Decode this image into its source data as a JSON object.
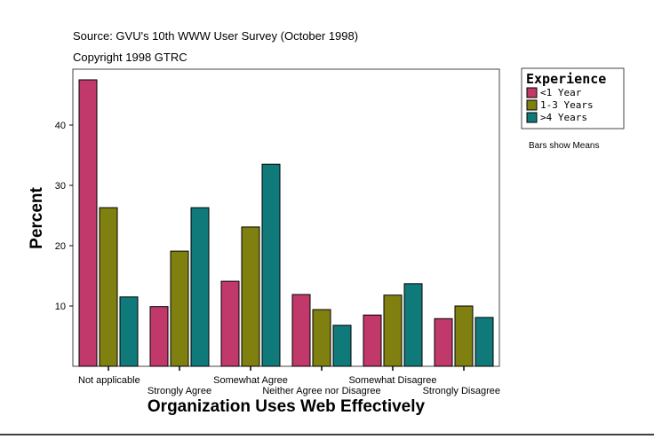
{
  "header": {
    "source": "Source: GVU's 10th WWW User Survey (October 1998)",
    "copyright": "Copyright 1998 GTRC"
  },
  "note": "Bars show Means",
  "chart_data": {
    "type": "bar",
    "xlabel": "Organization Uses Web Effectively",
    "ylabel": "Percent",
    "ylim": [
      0,
      50
    ],
    "yticks": [
      10,
      20,
      30,
      40
    ],
    "grid": false,
    "legend_title": "Experience",
    "legend_position": "right",
    "categories": [
      "Not applicable",
      "Strongly Agree",
      "Somewhat Agree",
      "Neither Agree nor Disagree",
      "Somewhat Disagree",
      "Strongly Disagree"
    ],
    "series": [
      {
        "name": "<1 Year",
        "color": "#C0396A",
        "values": [
          47.5,
          9.9,
          14.1,
          11.9,
          8.5,
          7.9
        ]
      },
      {
        "name": "1-3 Years",
        "color": "#808010",
        "values": [
          26.3,
          19.1,
          23.1,
          9.4,
          11.8,
          10.0
        ]
      },
      {
        "name": ">4 Years",
        "color": "#107A7A",
        "values": [
          11.5,
          26.3,
          33.5,
          6.8,
          13.7,
          8.1
        ]
      }
    ]
  }
}
